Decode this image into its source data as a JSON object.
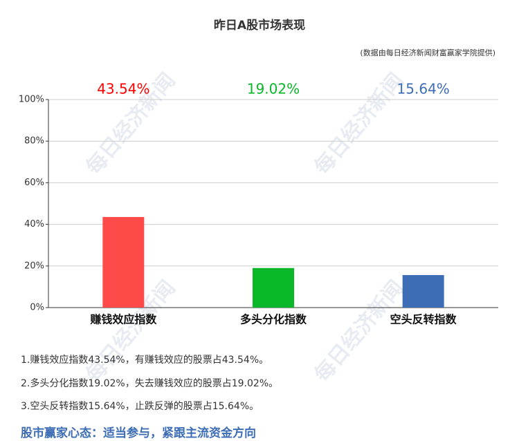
{
  "chart_data": {
    "type": "bar",
    "title": "昨日A股市场表现",
    "subtitle": "(数据由每日经济新闻财富赢家学院提供)",
    "categories": [
      "赚钱效应指数",
      "多头分化指数",
      "空头反转指数"
    ],
    "values": [
      43.54,
      19.02,
      15.64
    ],
    "value_labels": [
      "43.54%",
      "19.02%",
      "15.64%"
    ],
    "colors": [
      "#ff4a4a",
      "#09b728",
      "#3d6db5"
    ],
    "label_colors": [
      "#ff0000",
      "#09b728",
      "#3d6db5"
    ],
    "ylim": [
      0,
      100
    ],
    "yticks": [
      {
        "value": 0,
        "label": "0%"
      },
      {
        "value": 20,
        "label": "20%"
      },
      {
        "value": 40,
        "label": "40%"
      },
      {
        "value": 60,
        "label": "60%"
      },
      {
        "value": 80,
        "label": "80%"
      },
      {
        "value": 100,
        "label": "100%"
      }
    ],
    "grid": true
  },
  "notes": [
    "1.赚钱效应指数43.54%，有赚钱效应的股票占43.54%。",
    "2.多头分化指数19.02%，失去赚钱效应的股票占19.02%。",
    "3.空头反转指数15.64%，止跌反弹的股票占15.64%。"
  ],
  "footer": "股市赢家心态：适当参与，紧跟主流资金方向",
  "watermark": "每日经济新闻"
}
